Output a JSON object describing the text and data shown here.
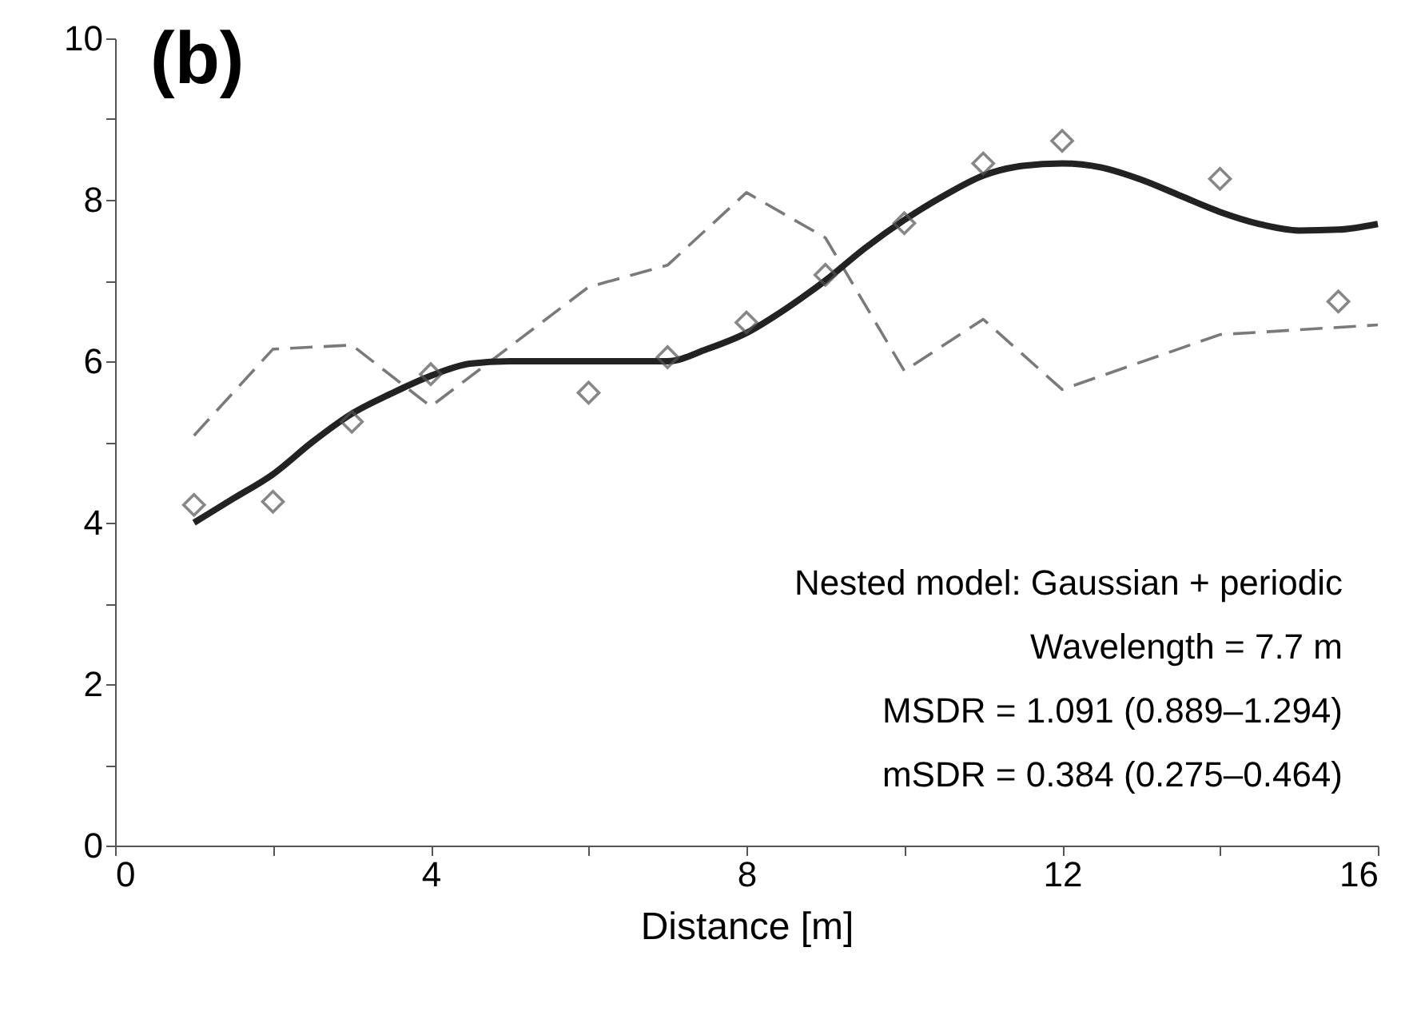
{
  "chart_data": {
    "type": "line",
    "title": "(b)",
    "xlabel": "Distance [m]",
    "annotations": [
      "Nested model: Gaussian + periodic",
      "Wavelength = 7.7 m",
      "MSDR = 1.091 (0.889–1.294)",
      "mSDR = 0.384 (0.275–0.464)"
    ],
    "xlim": [
      0,
      16
    ],
    "ylim": [
      0,
      10
    ],
    "xticks": [
      0,
      {
        "value": 2,
        "label": null
      },
      4,
      {
        "value": 6,
        "label": null
      },
      8,
      {
        "value": 10,
        "label": null
      },
      12,
      {
        "value": 14,
        "label": null
      },
      16
    ],
    "yticks": [
      0,
      {
        "value": 1,
        "label": null
      },
      2,
      {
        "value": 3,
        "label": null
      },
      4,
      {
        "value": 5,
        "label": null
      },
      6,
      {
        "value": 7,
        "label": null
      },
      8,
      {
        "value": 9,
        "label": null
      },
      10
    ],
    "grid": false,
    "series": [
      {
        "color": "#7a7a7a",
        "line_style": "dashed",
        "marker": "none",
        "x": [
          1,
          2,
          3,
          4,
          6,
          7,
          8,
          9,
          10,
          11,
          12,
          14,
          16
        ],
        "values": [
          5.08,
          6.15,
          6.2,
          5.44,
          6.92,
          7.19,
          8.09,
          7.53,
          5.88,
          6.52,
          5.65,
          6.33,
          6.45
        ]
      },
      {
        "color": "#222222",
        "line_style": "solid",
        "marker": "none",
        "x": [
          1,
          1.5,
          2,
          2.5,
          3,
          3.5,
          4,
          4.5,
          5,
          6,
          7,
          7.5,
          8,
          8.5,
          9,
          9.5,
          10,
          10.5,
          11,
          11.5,
          12,
          12.5,
          13,
          13.5,
          14,
          14.5,
          15,
          15.5,
          16
        ],
        "values": [
          4.0,
          4.3,
          4.6,
          5.0,
          5.35,
          5.6,
          5.82,
          5.97,
          6.0,
          6.0,
          6.0,
          6.15,
          6.35,
          6.65,
          7.0,
          7.4,
          7.75,
          8.05,
          8.3,
          8.42,
          8.45,
          8.4,
          8.25,
          8.05,
          7.85,
          7.7,
          7.62,
          7.63,
          7.7
        ]
      },
      {
        "type": "scatter",
        "color": "#555555",
        "marker": "diamond",
        "x": [
          1,
          2,
          3,
          4,
          6,
          7,
          8,
          9,
          10,
          11,
          12,
          14,
          15.5
        ],
        "values": [
          4.22,
          4.26,
          5.25,
          5.84,
          5.61,
          6.05,
          6.48,
          7.07,
          7.71,
          8.45,
          8.73,
          8.26,
          6.74
        ]
      }
    ]
  }
}
